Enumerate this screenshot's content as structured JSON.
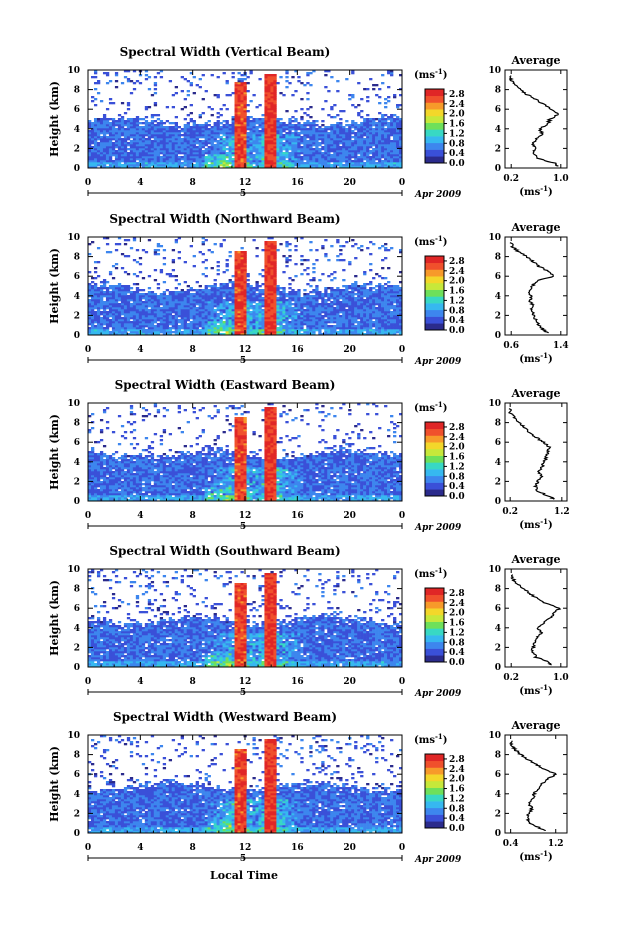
{
  "figure": {
    "xlabel": "Local Time",
    "date_label": "Apr 2009",
    "day_label": "5"
  },
  "colors": {
    "colormap": [
      "#2b2b8c",
      "#3a50d8",
      "#3d86ee",
      "#36b8f0",
      "#38d8c4",
      "#6ee05a",
      "#c7e83a",
      "#f3d72a",
      "#f79a2a",
      "#f0502c",
      "#e02626"
    ],
    "profile_line": "#000000",
    "axis": "#000000"
  },
  "chart_data": [
    {
      "type": "heatmap",
      "title": "Spectral Width (Vertical Beam)",
      "xlabel": "",
      "ylabel": "Height (km)",
      "x_ticks": [
        "0",
        "4",
        "8",
        "12",
        "16",
        "20",
        "0"
      ],
      "x_range": [
        0,
        24
      ],
      "y_ticks": [
        "0",
        "2",
        "4",
        "6",
        "8",
        "10"
      ],
      "y_range": [
        0,
        10
      ],
      "colorbar": {
        "unit": "(ms",
        "unit_exp": "-1",
        "unit_close": ")",
        "ticks": [
          "2.8",
          "2.4",
          "2.0",
          "1.6",
          "1.2",
          "0.8",
          "0.4",
          "0.0"
        ],
        "range": [
          0,
          3.0
        ]
      },
      "profile": {
        "title": "Average",
        "xlabel": "(ms",
        "xlabel_exp": "-1",
        "xlabel_close": ")",
        "x_ticks": [
          "0.2",
          "1.0"
        ],
        "x_range": [
          0.1,
          1.1
        ],
        "y_ticks": [
          "0",
          "2",
          "4",
          "6",
          "8",
          "10"
        ],
        "heights": [
          0.2,
          0.5,
          1.0,
          1.5,
          2.0,
          2.5,
          3.0,
          3.5,
          4.0,
          4.5,
          5.0,
          5.5,
          6.0,
          6.5,
          7.0,
          7.5,
          8.0,
          8.5,
          9.0,
          9.5
        ],
        "values": [
          0.95,
          0.9,
          0.62,
          0.55,
          0.58,
          0.56,
          0.62,
          0.7,
          0.66,
          0.8,
          0.82,
          0.98,
          0.85,
          0.72,
          0.6,
          0.45,
          0.35,
          0.25,
          0.2,
          0.2
        ]
      }
    },
    {
      "type": "heatmap",
      "title": "Spectral Width (Northward Beam)",
      "xlabel": "",
      "ylabel": "Height (km)",
      "x_ticks": [
        "0",
        "4",
        "8",
        "12",
        "16",
        "20",
        "0"
      ],
      "x_range": [
        0,
        24
      ],
      "y_ticks": [
        "0",
        "2",
        "4",
        "6",
        "8",
        "10"
      ],
      "y_range": [
        0,
        10
      ],
      "colorbar": {
        "unit": "(ms",
        "unit_exp": "-1",
        "unit_close": ")",
        "ticks": [
          "2.8",
          "2.4",
          "2.0",
          "1.6",
          "1.2",
          "0.8",
          "0.4",
          "0.0"
        ],
        "range": [
          0,
          3.0
        ]
      },
      "profile": {
        "title": "Average",
        "xlabel": "(ms",
        "xlabel_exp": "-1",
        "xlabel_close": ")",
        "x_ticks": [
          "0.6",
          "1.4"
        ],
        "x_range": [
          0.5,
          1.5
        ],
        "y_ticks": [
          "0",
          "2",
          "4",
          "6",
          "8",
          "10"
        ],
        "heights": [
          0.2,
          0.5,
          1.0,
          1.5,
          2.0,
          2.5,
          3.0,
          3.5,
          4.0,
          4.5,
          5.0,
          5.5,
          6.0,
          6.5,
          7.0,
          7.5,
          8.0,
          8.5,
          9.0,
          9.5
        ],
        "values": [
          1.2,
          1.12,
          1.05,
          1.0,
          0.97,
          0.92,
          0.95,
          0.9,
          0.92,
          0.88,
          0.95,
          1.0,
          1.3,
          1.2,
          1.05,
          0.95,
          0.85,
          0.72,
          0.62,
          0.6
        ]
      }
    },
    {
      "type": "heatmap",
      "title": "Spectral Width (Eastward Beam)",
      "xlabel": "",
      "ylabel": "Height (km)",
      "x_ticks": [
        "0",
        "4",
        "8",
        "12",
        "16",
        "20",
        "0"
      ],
      "x_range": [
        0,
        24
      ],
      "y_ticks": [
        "0",
        "2",
        "4",
        "6",
        "8",
        "10"
      ],
      "y_range": [
        0,
        10
      ],
      "colorbar": {
        "unit": "(ms",
        "unit_exp": "-1",
        "unit_close": ")",
        "ticks": [
          "2.8",
          "2.4",
          "2.0",
          "1.6",
          "1.2",
          "0.8",
          "0.4",
          "0.0"
        ],
        "range": [
          0,
          3.0
        ]
      },
      "profile": {
        "title": "Average",
        "xlabel": "(ms",
        "xlabel_exp": "-1",
        "xlabel_close": ")",
        "x_ticks": [
          "0.2",
          "1.2"
        ],
        "x_range": [
          0.1,
          1.3
        ],
        "y_ticks": [
          "0",
          "2",
          "4",
          "6",
          "8",
          "10"
        ],
        "heights": [
          0.2,
          0.5,
          1.0,
          1.5,
          2.0,
          2.5,
          3.0,
          3.5,
          4.0,
          4.5,
          5.0,
          5.5,
          6.0,
          6.5,
          7.0,
          7.5,
          8.0,
          8.5,
          9.0,
          9.5
        ],
        "values": [
          1.05,
          0.95,
          0.72,
          0.7,
          0.74,
          0.8,
          0.75,
          0.82,
          0.85,
          0.9,
          0.92,
          0.95,
          0.85,
          0.7,
          0.58,
          0.48,
          0.38,
          0.28,
          0.2,
          0.2
        ]
      }
    },
    {
      "type": "heatmap",
      "title": "Spectral Width (Southward Beam)",
      "xlabel": "",
      "ylabel": "Height (km)",
      "x_ticks": [
        "0",
        "4",
        "8",
        "12",
        "16",
        "20",
        "0"
      ],
      "x_range": [
        0,
        24
      ],
      "y_ticks": [
        "0",
        "2",
        "4",
        "6",
        "8",
        "10"
      ],
      "y_range": [
        0,
        10
      ],
      "colorbar": {
        "unit": "(ms",
        "unit_exp": "-1",
        "unit_close": ")",
        "ticks": [
          "2.8",
          "2.4",
          "2.0",
          "1.6",
          "1.2",
          "0.8",
          "0.4",
          "0.0"
        ],
        "range": [
          0,
          3.0
        ]
      },
      "profile": {
        "title": "Average",
        "xlabel": "(ms",
        "xlabel_exp": "-1",
        "xlabel_close": ")",
        "x_ticks": [
          "0.2",
          "1.0"
        ],
        "x_range": [
          0.1,
          1.1
        ],
        "y_ticks": [
          "0",
          "2",
          "4",
          "6",
          "8",
          "10"
        ],
        "heights": [
          0.2,
          0.5,
          1.0,
          1.5,
          2.0,
          2.5,
          3.0,
          3.5,
          4.0,
          4.5,
          5.0,
          5.5,
          6.0,
          6.5,
          7.0,
          7.5,
          8.0,
          8.5,
          9.0,
          9.5
        ],
        "values": [
          0.85,
          0.8,
          0.6,
          0.55,
          0.55,
          0.58,
          0.62,
          0.68,
          0.62,
          0.72,
          0.82,
          0.9,
          0.98,
          0.75,
          0.62,
          0.5,
          0.4,
          0.3,
          0.22,
          0.2
        ]
      }
    },
    {
      "type": "heatmap",
      "title": "Spectral Width (Westward Beam)",
      "xlabel": "Local Time",
      "ylabel": "Height (km)",
      "x_ticks": [
        "0",
        "4",
        "8",
        "12",
        "16",
        "20",
        "0"
      ],
      "x_range": [
        0,
        24
      ],
      "y_ticks": [
        "0",
        "2",
        "4",
        "6",
        "8",
        "10"
      ],
      "y_range": [
        0,
        10
      ],
      "colorbar": {
        "unit": "(ms",
        "unit_exp": "-1",
        "unit_close": ")",
        "ticks": [
          "2.8",
          "2.4",
          "2.0",
          "1.6",
          "1.2",
          "0.8",
          "0.4",
          "0.0"
        ],
        "range": [
          0,
          3.0
        ]
      },
      "profile": {
        "title": "Average",
        "xlabel": "(ms",
        "xlabel_exp": "-1",
        "xlabel_close": ")",
        "x_ticks": [
          "0.4",
          "1.2"
        ],
        "x_range": [
          0.3,
          1.4
        ],
        "y_ticks": [
          "0",
          "2",
          "4",
          "6",
          "8",
          "10"
        ],
        "heights": [
          0.2,
          0.5,
          1.0,
          1.5,
          2.0,
          2.5,
          3.0,
          3.5,
          4.0,
          4.5,
          5.0,
          5.5,
          6.0,
          6.5,
          7.0,
          7.5,
          8.0,
          8.5,
          9.0,
          9.5
        ],
        "values": [
          1.0,
          0.92,
          0.75,
          0.7,
          0.72,
          0.78,
          0.72,
          0.8,
          0.82,
          0.88,
          0.95,
          1.05,
          1.2,
          1.0,
          0.85,
          0.7,
          0.58,
          0.48,
          0.42,
          0.4
        ]
      }
    }
  ]
}
